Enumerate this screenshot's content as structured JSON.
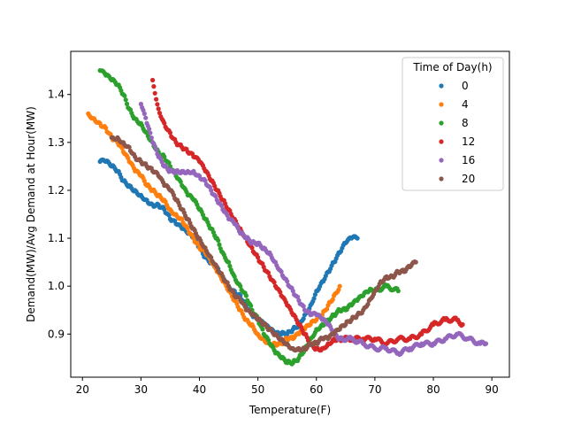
{
  "chart_data": {
    "type": "scatter",
    "title": "",
    "xlabel": "Temperature(F)",
    "ylabel": "Demand(MW)/Avg Demand at Hour(MW)",
    "xlim": [
      18,
      93
    ],
    "ylim": [
      0.81,
      1.49
    ],
    "x_ticks": [
      20,
      30,
      40,
      50,
      60,
      70,
      80,
      90
    ],
    "y_ticks": [
      0.9,
      1.0,
      1.1,
      1.2,
      1.3,
      1.4
    ],
    "grid": false,
    "legend": {
      "title": "Time of Day(h)",
      "placement": "top-right"
    },
    "series": [
      {
        "name": "0",
        "color": "#1f77b4",
        "points": [
          [
            23,
            1.26
          ],
          [
            24,
            1.26
          ],
          [
            25,
            1.25
          ],
          [
            26,
            1.24
          ],
          [
            27,
            1.22
          ],
          [
            28,
            1.21
          ],
          [
            29,
            1.2
          ],
          [
            30,
            1.19
          ],
          [
            31,
            1.18
          ],
          [
            32,
            1.17
          ],
          [
            33,
            1.17
          ],
          [
            34,
            1.16
          ],
          [
            35,
            1.14
          ],
          [
            36,
            1.13
          ],
          [
            37,
            1.12
          ],
          [
            38,
            1.11
          ],
          [
            39,
            1.1
          ],
          [
            40,
            1.08
          ],
          [
            41,
            1.06
          ],
          [
            42,
            1.05
          ],
          [
            43,
            1.04
          ],
          [
            44,
            1.02
          ],
          [
            45,
            1.0
          ],
          [
            46,
            0.99
          ],
          [
            47,
            0.98
          ],
          [
            48,
            0.96
          ],
          [
            49,
            0.94
          ],
          [
            50,
            0.93
          ],
          [
            51,
            0.92
          ],
          [
            52,
            0.91
          ],
          [
            53,
            0.9
          ],
          [
            54,
            0.9
          ],
          [
            55,
            0.9
          ],
          [
            56,
            0.91
          ],
          [
            57,
            0.92
          ],
          [
            58,
            0.94
          ],
          [
            59,
            0.96
          ],
          [
            60,
            0.99
          ],
          [
            61,
            1.01
          ],
          [
            62,
            1.03
          ],
          [
            63,
            1.05
          ],
          [
            64,
            1.07
          ],
          [
            65,
            1.09
          ],
          [
            66,
            1.1
          ],
          [
            67,
            1.1
          ]
        ]
      },
      {
        "name": "4",
        "color": "#ff7f0e",
        "points": [
          [
            21,
            1.36
          ],
          [
            22,
            1.35
          ],
          [
            23,
            1.34
          ],
          [
            24,
            1.33
          ],
          [
            25,
            1.31
          ],
          [
            26,
            1.3
          ],
          [
            27,
            1.28
          ],
          [
            28,
            1.26
          ],
          [
            29,
            1.24
          ],
          [
            30,
            1.23
          ],
          [
            31,
            1.21
          ],
          [
            32,
            1.2
          ],
          [
            33,
            1.19
          ],
          [
            34,
            1.18
          ],
          [
            35,
            1.16
          ],
          [
            36,
            1.15
          ],
          [
            37,
            1.14
          ],
          [
            38,
            1.12
          ],
          [
            39,
            1.1
          ],
          [
            40,
            1.08
          ],
          [
            41,
            1.07
          ],
          [
            42,
            1.05
          ],
          [
            43,
            1.03
          ],
          [
            44,
            1.01
          ],
          [
            45,
            0.99
          ],
          [
            46,
            0.97
          ],
          [
            47,
            0.95
          ],
          [
            48,
            0.93
          ],
          [
            49,
            0.92
          ],
          [
            50,
            0.9
          ],
          [
            51,
            0.89
          ],
          [
            52,
            0.88
          ],
          [
            53,
            0.88
          ],
          [
            54,
            0.88
          ],
          [
            55,
            0.89
          ],
          [
            56,
            0.89
          ],
          [
            57,
            0.9
          ],
          [
            58,
            0.91
          ],
          [
            59,
            0.92
          ],
          [
            60,
            0.93
          ],
          [
            61,
            0.94
          ],
          [
            62,
            0.96
          ],
          [
            63,
            0.98
          ],
          [
            64,
            1.0
          ]
        ]
      },
      {
        "name": "8",
        "color": "#2ca02c",
        "points": [
          [
            23,
            1.45
          ],
          [
            24,
            1.44
          ],
          [
            25,
            1.43
          ],
          [
            26,
            1.42
          ],
          [
            27,
            1.4
          ],
          [
            28,
            1.37
          ],
          [
            29,
            1.35
          ],
          [
            30,
            1.34
          ],
          [
            31,
            1.32
          ],
          [
            32,
            1.3
          ],
          [
            33,
            1.28
          ],
          [
            34,
            1.27
          ],
          [
            35,
            1.25
          ],
          [
            36,
            1.23
          ],
          [
            37,
            1.21
          ],
          [
            38,
            1.19
          ],
          [
            39,
            1.18
          ],
          [
            40,
            1.16
          ],
          [
            41,
            1.14
          ],
          [
            42,
            1.12
          ],
          [
            43,
            1.1
          ],
          [
            44,
            1.07
          ],
          [
            45,
            1.05
          ],
          [
            46,
            1.02
          ],
          [
            47,
            1.0
          ],
          [
            48,
            0.98
          ],
          [
            49,
            0.95
          ],
          [
            50,
            0.93
          ],
          [
            51,
            0.9
          ],
          [
            52,
            0.88
          ],
          [
            53,
            0.86
          ],
          [
            54,
            0.85
          ],
          [
            55,
            0.84
          ],
          [
            56,
            0.84
          ],
          [
            57,
            0.85
          ],
          [
            58,
            0.87
          ],
          [
            59,
            0.89
          ],
          [
            60,
            0.91
          ],
          [
            61,
            0.92
          ],
          [
            62,
            0.93
          ],
          [
            63,
            0.94
          ],
          [
            64,
            0.95
          ],
          [
            65,
            0.95
          ],
          [
            66,
            0.96
          ],
          [
            67,
            0.97
          ],
          [
            68,
            0.98
          ],
          [
            69,
            0.99
          ],
          [
            70,
            0.99
          ],
          [
            72,
            1.0
          ],
          [
            74,
            0.99
          ]
        ]
      },
      {
        "name": "12",
        "color": "#d62728",
        "points": [
          [
            32,
            1.43
          ],
          [
            33,
            1.37
          ],
          [
            34,
            1.34
          ],
          [
            35,
            1.32
          ],
          [
            36,
            1.3
          ],
          [
            37,
            1.29
          ],
          [
            38,
            1.28
          ],
          [
            39,
            1.27
          ],
          [
            40,
            1.26
          ],
          [
            41,
            1.24
          ],
          [
            42,
            1.22
          ],
          [
            43,
            1.2
          ],
          [
            44,
            1.18
          ],
          [
            45,
            1.16
          ],
          [
            46,
            1.14
          ],
          [
            47,
            1.12
          ],
          [
            48,
            1.1
          ],
          [
            49,
            1.08
          ],
          [
            50,
            1.06
          ],
          [
            51,
            1.04
          ],
          [
            52,
            1.02
          ],
          [
            53,
            1.0
          ],
          [
            54,
            0.98
          ],
          [
            55,
            0.96
          ],
          [
            56,
            0.94
          ],
          [
            57,
            0.92
          ],
          [
            58,
            0.9
          ],
          [
            59,
            0.88
          ],
          [
            60,
            0.87
          ],
          [
            61,
            0.87
          ],
          [
            62,
            0.88
          ],
          [
            63,
            0.89
          ],
          [
            64,
            0.89
          ],
          [
            66,
            0.89
          ],
          [
            68,
            0.89
          ],
          [
            70,
            0.89
          ],
          [
            72,
            0.88
          ],
          [
            74,
            0.89
          ],
          [
            76,
            0.89
          ],
          [
            78,
            0.9
          ],
          [
            80,
            0.92
          ],
          [
            82,
            0.93
          ],
          [
            84,
            0.93
          ],
          [
            85,
            0.92
          ]
        ]
      },
      {
        "name": "16",
        "color": "#9467bd",
        "points": [
          [
            30,
            1.38
          ],
          [
            31,
            1.34
          ],
          [
            32,
            1.3
          ],
          [
            33,
            1.27
          ],
          [
            34,
            1.25
          ],
          [
            35,
            1.24
          ],
          [
            36,
            1.24
          ],
          [
            37,
            1.24
          ],
          [
            38,
            1.24
          ],
          [
            39,
            1.24
          ],
          [
            40,
            1.23
          ],
          [
            41,
            1.22
          ],
          [
            42,
            1.2
          ],
          [
            43,
            1.18
          ],
          [
            44,
            1.16
          ],
          [
            45,
            1.14
          ],
          [
            46,
            1.13
          ],
          [
            47,
            1.11
          ],
          [
            48,
            1.1
          ],
          [
            49,
            1.09
          ],
          [
            50,
            1.09
          ],
          [
            51,
            1.08
          ],
          [
            52,
            1.07
          ],
          [
            53,
            1.05
          ],
          [
            54,
            1.03
          ],
          [
            55,
            1.01
          ],
          [
            56,
            0.99
          ],
          [
            57,
            0.97
          ],
          [
            58,
            0.95
          ],
          [
            59,
            0.94
          ],
          [
            60,
            0.94
          ],
          [
            61,
            0.93
          ],
          [
            62,
            0.92
          ],
          [
            63,
            0.9
          ],
          [
            64,
            0.89
          ],
          [
            66,
            0.89
          ],
          [
            68,
            0.88
          ],
          [
            70,
            0.87
          ],
          [
            72,
            0.87
          ],
          [
            74,
            0.86
          ],
          [
            76,
            0.87
          ],
          [
            78,
            0.88
          ],
          [
            80,
            0.88
          ],
          [
            82,
            0.89
          ],
          [
            84,
            0.9
          ],
          [
            86,
            0.89
          ],
          [
            88,
            0.88
          ],
          [
            89,
            0.88
          ]
        ]
      },
      {
        "name": "20",
        "color": "#8c564b",
        "points": [
          [
            25,
            1.31
          ],
          [
            26,
            1.31
          ],
          [
            27,
            1.3
          ],
          [
            28,
            1.29
          ],
          [
            29,
            1.27
          ],
          [
            30,
            1.26
          ],
          [
            31,
            1.25
          ],
          [
            32,
            1.24
          ],
          [
            33,
            1.23
          ],
          [
            34,
            1.21
          ],
          [
            35,
            1.2
          ],
          [
            36,
            1.18
          ],
          [
            37,
            1.16
          ],
          [
            38,
            1.14
          ],
          [
            39,
            1.12
          ],
          [
            40,
            1.1
          ],
          [
            41,
            1.08
          ],
          [
            42,
            1.06
          ],
          [
            43,
            1.04
          ],
          [
            44,
            1.02
          ],
          [
            45,
            1.0
          ],
          [
            46,
            0.98
          ],
          [
            47,
            0.97
          ],
          [
            48,
            0.95
          ],
          [
            49,
            0.94
          ],
          [
            50,
            0.93
          ],
          [
            51,
            0.92
          ],
          [
            52,
            0.91
          ],
          [
            53,
            0.9
          ],
          [
            54,
            0.89
          ],
          [
            55,
            0.88
          ],
          [
            56,
            0.87
          ],
          [
            57,
            0.87
          ],
          [
            58,
            0.87
          ],
          [
            59,
            0.88
          ],
          [
            60,
            0.88
          ],
          [
            61,
            0.89
          ],
          [
            62,
            0.89
          ],
          [
            63,
            0.9
          ],
          [
            64,
            0.91
          ],
          [
            65,
            0.92
          ],
          [
            66,
            0.93
          ],
          [
            67,
            0.94
          ],
          [
            68,
            0.95
          ],
          [
            69,
            0.97
          ],
          [
            70,
            0.99
          ],
          [
            71,
            1.01
          ],
          [
            72,
            1.02
          ],
          [
            73,
            1.02
          ],
          [
            74,
            1.03
          ],
          [
            75,
            1.03
          ],
          [
            76,
            1.04
          ],
          [
            77,
            1.05
          ]
        ]
      }
    ]
  }
}
